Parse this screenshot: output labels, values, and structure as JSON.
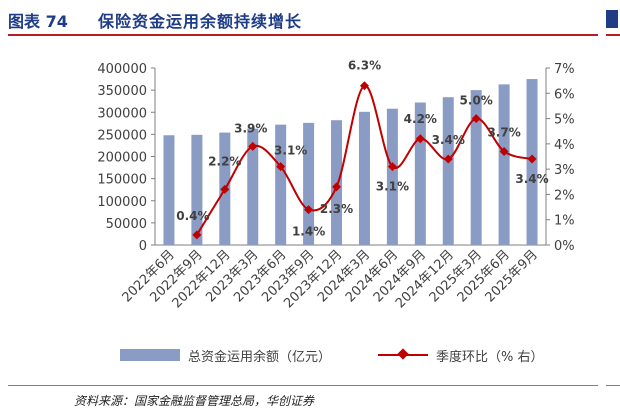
{
  "header": {
    "figure_label": "图表 74",
    "figure_title": "保险资金运用余额持续增长"
  },
  "legend": {
    "bar_label": "总资金运用余额（亿元）",
    "line_label": "季度环比（% 右）"
  },
  "source": "资料来源：国家金融监督管理总局，华创证券",
  "colors": {
    "bar": "#8a9bc4",
    "line": "#c00000",
    "title": "#1f3c86",
    "accent": "#b51f24"
  },
  "chart_data": {
    "type": "bar",
    "categories": [
      "2022年6月",
      "2022年9月",
      "2022年12月",
      "2023年3月",
      "2023年6月",
      "2023年9月",
      "2023年12月",
      "2024年3月",
      "2024年6月",
      "2024年9月",
      "2024年12月",
      "2025年3月",
      "2025年6月",
      "2025年9月"
    ],
    "series": [
      {
        "name": "总资金运用余额（亿元）",
        "type": "bar",
        "axis": "left",
        "values": [
          248000,
          249000,
          254000,
          263000,
          272000,
          276000,
          282000,
          301000,
          308000,
          322000,
          334000,
          350000,
          363000,
          375000
        ]
      },
      {
        "name": "季度环比（% 右）",
        "type": "line",
        "axis": "right",
        "values": [
          null,
          0.4,
          2.2,
          3.9,
          3.1,
          1.4,
          2.3,
          6.3,
          3.1,
          4.2,
          3.4,
          5.0,
          3.7,
          3.4
        ],
        "labels": [
          "",
          "0.4%",
          "2.2%",
          "3.9%",
          "3.1%",
          "1.4%",
          "2.3%",
          "6.3%",
          "3.1%",
          "4.2%",
          "3.4%",
          "5.0%",
          "3.7%",
          "3.4%"
        ]
      }
    ],
    "y_left": {
      "ticks": [
        0,
        50000,
        100000,
        150000,
        200000,
        250000,
        300000,
        350000,
        400000
      ],
      "tick_labels": [
        "0",
        "50000",
        "100000",
        "150000",
        "200000",
        "250000",
        "300000",
        "350000",
        "400000"
      ],
      "ylim": [
        0,
        400000
      ]
    },
    "y_right": {
      "ticks": [
        0,
        1,
        2,
        3,
        4,
        5,
        6,
        7
      ],
      "tick_labels": [
        "0%",
        "1%",
        "2%",
        "3%",
        "4%",
        "5%",
        "6%",
        "7%"
      ],
      "ylim": [
        0,
        7
      ]
    },
    "grid": false,
    "legend_position": "bottom"
  }
}
